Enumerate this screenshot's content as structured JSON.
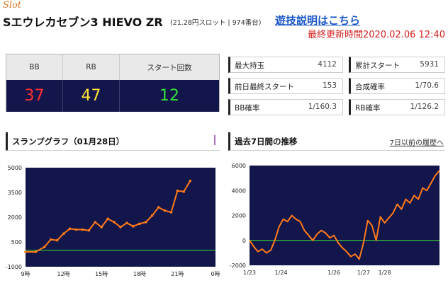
{
  "header": {
    "slot_tag": "Slot",
    "machine_name": "Sエウレカセブン3 HIEVO ZR",
    "machine_sub": "(21.28円スロット | 974番台)",
    "rules_link": "遊技説明はこちら",
    "updated": "最終更新時間2020.02.06 12:40"
  },
  "counter": {
    "headers": [
      "BB",
      "RB",
      "スタート回数"
    ],
    "values": [
      "37",
      "47",
      "12"
    ],
    "colors": [
      "#ff3030",
      "#ffe23a",
      "#35e23a"
    ]
  },
  "stats": {
    "max_medals": {
      "label": "最大持玉",
      "value": "4112"
    },
    "prev_final_start": {
      "label": "前日最終スタート",
      "value": "153"
    },
    "bb_rate": {
      "label": "BB確率",
      "value": "1/160.3"
    },
    "total_start": {
      "label": "累計スタート",
      "value": "5931"
    },
    "combined_rate": {
      "label": "合成確率",
      "value": "1/70.6"
    },
    "rb_rate": {
      "label": "RB確率",
      "value": "1/126.2"
    }
  },
  "left_panel": {
    "title": "スランプグラフ（01月28日）"
  },
  "right_panel": {
    "title": "過去7日間の推移",
    "history_link": "7日以前の履歴へ"
  },
  "chart_data": [
    {
      "type": "line",
      "title": "スランプグラフ（01月28日）",
      "ylim": [
        -1000,
        5000
      ],
      "yticks": [
        "5000",
        "3500",
        "2000",
        "500",
        "-1000"
      ],
      "ytick_values": [
        5000,
        3500,
        2000,
        500,
        -1000
      ],
      "xticks": [
        "9時",
        "12時",
        "15時",
        "18時",
        "21時",
        "0時"
      ],
      "xlim": [
        9,
        24
      ],
      "x": [
        9.0,
        9.8,
        10.5,
        11.0,
        11.5,
        12.0,
        12.5,
        13.0,
        13.5,
        14.0,
        14.5,
        15.0,
        15.5,
        16.0,
        16.5,
        17.0,
        17.5,
        18.0,
        18.5,
        19.0,
        19.5,
        20.0,
        20.5,
        21.0,
        21.5,
        22.0
      ],
      "y": [
        -100,
        -100,
        200,
        650,
        600,
        1000,
        1300,
        1250,
        1250,
        1200,
        1700,
        1400,
        1900,
        1700,
        1400,
        1650,
        1450,
        1600,
        1700,
        2100,
        2600,
        2400,
        2300,
        3600,
        3550,
        4200
      ],
      "line_color": "#ff7a1a",
      "zero_line_color": "#34c83a",
      "background": "#12164a"
    },
    {
      "type": "line",
      "title": "過去7日間の推移",
      "ylim": [
        -2000,
        6000
      ],
      "yticks": [
        "6000",
        "4000",
        "2000",
        "0",
        "-2000"
      ],
      "ytick_values": [
        6000,
        4000,
        2000,
        0,
        -2000
      ],
      "xticks": [
        "1/23",
        "1/24",
        "1/26",
        "1/27",
        "1/28"
      ],
      "xtick_positions": [
        0.0,
        1.5,
        4.0,
        5.4,
        6.4
      ],
      "xlim": [
        0,
        9
      ],
      "x": [
        0.0,
        0.2,
        0.4,
        0.6,
        0.8,
        1.0,
        1.2,
        1.4,
        1.6,
        1.8,
        2.0,
        2.2,
        2.4,
        2.6,
        2.8,
        3.0,
        3.2,
        3.4,
        3.6,
        3.8,
        4.0,
        4.2,
        4.4,
        4.6,
        4.8,
        5.0,
        5.2,
        5.4,
        5.6,
        5.8,
        6.0,
        6.2,
        6.4,
        6.6,
        6.8,
        7.0,
        7.2,
        7.4,
        7.6,
        7.8,
        8.0,
        8.2,
        8.4,
        8.6,
        8.8,
        9.0
      ],
      "y": [
        0,
        -500,
        -900,
        -700,
        -1000,
        -800,
        0,
        1100,
        1700,
        1500,
        2000,
        1700,
        1500,
        800,
        400,
        0,
        500,
        800,
        600,
        200,
        400,
        -200,
        -600,
        -900,
        -1300,
        -1100,
        -1500,
        -200,
        1600,
        1200,
        0,
        1900,
        1400,
        1800,
        2200,
        2900,
        2500,
        3300,
        3000,
        3600,
        3300,
        4200,
        4000,
        4600,
        5200,
        5600
      ],
      "line_color": "#ff7a1a",
      "zero_line_color": "#34c83a",
      "background": "#12164a"
    }
  ]
}
